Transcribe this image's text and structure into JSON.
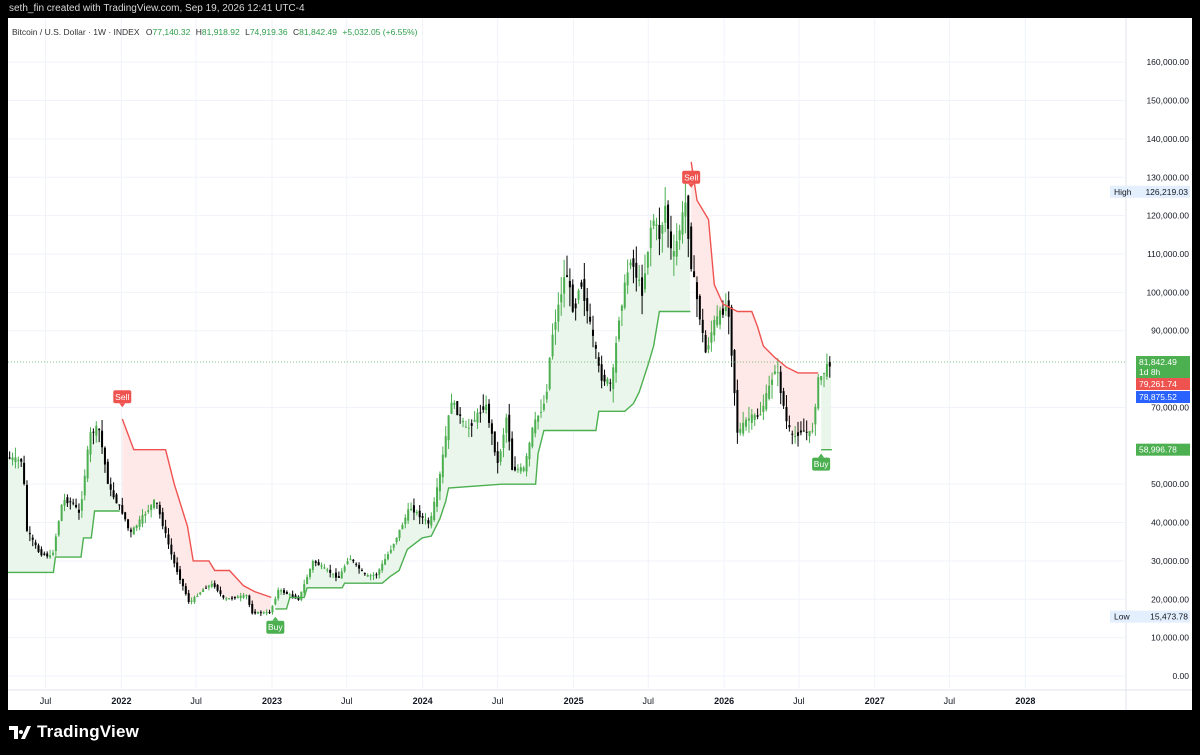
{
  "header": {
    "credit": "seth_fin created with TradingView.com, Sep 19, 2026 12:41 UTC-4"
  },
  "legend": {
    "symbol": "Bitcoin / U.S. Dollar · 1W · INDEX",
    "open_label": "O",
    "open": "77,140.32",
    "high_label": "H",
    "high": "81,918.92",
    "low_label": "L",
    "low": "74,919.36",
    "close_label": "C",
    "close": "81,842.49",
    "change": "+5,032.05 (+6.55%)"
  },
  "footer": {
    "brand": "TradingView"
  },
  "colors": {
    "up": "#4caf50",
    "down": "#000000",
    "supertrend_up": "#4caf50",
    "supertrend_down": "#ef5350",
    "fill_up": "#e8f5e9",
    "fill_down": "#ffe5e5",
    "blue_line": "#2962ff"
  },
  "chart_data": {
    "type": "candlestick",
    "title": "",
    "symbol": "Bitcoin / U.S. Dollar",
    "timeframe": "1W",
    "ylim": [
      0,
      165000
    ],
    "y_ticks": [
      "160,000.00",
      "150,000.00",
      "140,000.00",
      "130,000.00",
      "120,000.00",
      "110,000.00",
      "100,000.00",
      "90,000.00",
      "70,000.00",
      "50,000.00",
      "40,000.00",
      "30,000.00",
      "20,000.00",
      "10,000.00",
      "0.00"
    ],
    "y_tick_values": [
      160000,
      150000,
      140000,
      130000,
      120000,
      110000,
      100000,
      90000,
      70000,
      50000,
      40000,
      30000,
      20000,
      10000,
      0
    ],
    "xlim": [
      "2021-04-01",
      "2028-09-01"
    ],
    "x_ticks": [
      {
        "label": "Jul",
        "date": "2021-07-01",
        "bold": false
      },
      {
        "label": "2022",
        "date": "2022-01-01",
        "bold": true
      },
      {
        "label": "Jul",
        "date": "2022-07-01",
        "bold": false
      },
      {
        "label": "2023",
        "date": "2023-01-01",
        "bold": true
      },
      {
        "label": "Jul",
        "date": "2023-07-01",
        "bold": false
      },
      {
        "label": "2024",
        "date": "2024-01-01",
        "bold": true
      },
      {
        "label": "Jul",
        "date": "2024-07-01",
        "bold": false
      },
      {
        "label": "2025",
        "date": "2025-01-01",
        "bold": true
      },
      {
        "label": "Jul",
        "date": "2025-07-01",
        "bold": false
      },
      {
        "label": "2026",
        "date": "2026-01-01",
        "bold": true
      },
      {
        "label": "Jul",
        "date": "2026-07-01",
        "bold": false
      },
      {
        "label": "2027",
        "date": "2027-01-01",
        "bold": true
      },
      {
        "label": "Jul",
        "date": "2027-07-01",
        "bold": false
      },
      {
        "label": "2028",
        "date": "2028-01-01",
        "bold": true
      }
    ],
    "price_path": [
      [
        "2021-04-01",
        57000
      ],
      [
        "2021-05-10",
        56000
      ],
      [
        "2021-05-20",
        38000
      ],
      [
        "2021-06-20",
        32000
      ],
      [
        "2021-07-20",
        31000
      ],
      [
        "2021-08-15",
        46000
      ],
      [
        "2021-09-10",
        45000
      ],
      [
        "2021-09-25",
        42000
      ],
      [
        "2021-10-20",
        63000
      ],
      [
        "2021-11-10",
        65000
      ],
      [
        "2021-12-05",
        49000
      ],
      [
        "2022-01-10",
        42000
      ],
      [
        "2022-01-25",
        37000
      ],
      [
        "2022-03-28",
        46000
      ],
      [
        "2022-05-10",
        30000
      ],
      [
        "2022-06-18",
        19000
      ],
      [
        "2022-07-25",
        23000
      ],
      [
        "2022-08-15",
        24000
      ],
      [
        "2022-09-10",
        20000
      ],
      [
        "2022-11-05",
        21000
      ],
      [
        "2022-11-15",
        16500
      ],
      [
        "2022-12-30",
        16500
      ],
      [
        "2023-01-20",
        22500
      ],
      [
        "2023-03-10",
        20000
      ],
      [
        "2023-04-14",
        30000
      ],
      [
        "2023-06-15",
        25500
      ],
      [
        "2023-07-10",
        31000
      ],
      [
        "2023-08-20",
        26000
      ],
      [
        "2023-09-15",
        26500
      ],
      [
        "2023-10-24",
        34000
      ],
      [
        "2023-12-05",
        44000
      ],
      [
        "2024-01-22",
        39500
      ],
      [
        "2024-02-15",
        52000
      ],
      [
        "2024-03-14",
        72000
      ],
      [
        "2024-04-20",
        64000
      ],
      [
        "2024-06-05",
        71000
      ],
      [
        "2024-07-05",
        55000
      ],
      [
        "2024-07-28",
        69000
      ],
      [
        "2024-08-06",
        54000
      ],
      [
        "2024-09-07",
        54000
      ],
      [
        "2024-09-28",
        65000
      ],
      [
        "2024-10-29",
        72000
      ],
      [
        "2024-11-12",
        88000
      ],
      [
        "2024-12-17",
        106000
      ],
      [
        "2025-01-06",
        94000
      ],
      [
        "2025-01-20",
        104000
      ],
      [
        "2025-02-28",
        84000
      ],
      [
        "2025-03-10",
        78000
      ],
      [
        "2025-04-07",
        76000
      ],
      [
        "2025-04-25",
        94000
      ],
      [
        "2025-05-22",
        109000
      ],
      [
        "2025-06-20",
        100000
      ],
      [
        "2025-07-14",
        120000
      ],
      [
        "2025-08-02",
        114000
      ],
      [
        "2025-08-14",
        123000
      ],
      [
        "2025-09-01",
        108000
      ],
      [
        "2025-10-06",
        125000
      ],
      [
        "2025-10-11",
        111000
      ],
      [
        "2025-11-21",
        84000
      ],
      [
        "2025-12-10",
        92000
      ],
      [
        "2026-01-14",
        97000
      ],
      [
        "2026-02-06",
        63000
      ],
      [
        "2026-03-01",
        67000
      ],
      [
        "2026-04-01",
        68000
      ],
      [
        "2026-04-20",
        74000
      ],
      [
        "2026-05-10",
        81000
      ],
      [
        "2026-06-05",
        66000
      ],
      [
        "2026-06-20",
        62000
      ],
      [
        "2026-07-10",
        64000
      ],
      [
        "2026-08-05",
        63000
      ],
      [
        "2026-08-20",
        77000
      ],
      [
        "2026-09-19",
        81842
      ]
    ],
    "supertrend": [
      {
        "dir": "up",
        "points": [
          [
            "2021-04-01",
            27000
          ],
          [
            "2021-07-20",
            27000
          ],
          [
            "2021-07-25",
            31000
          ],
          [
            "2021-09-25",
            31000
          ],
          [
            "2021-10-01",
            36000
          ],
          [
            "2021-10-20",
            36000
          ],
          [
            "2021-10-28",
            43000
          ],
          [
            "2021-12-28",
            43000
          ]
        ]
      },
      {
        "dir": "down",
        "points": [
          [
            "2022-01-03",
            67000
          ],
          [
            "2022-01-31",
            59000
          ],
          [
            "2022-04-18",
            59000
          ],
          [
            "2022-05-09",
            50000
          ],
          [
            "2022-06-10",
            39000
          ],
          [
            "2022-06-24",
            30000
          ],
          [
            "2022-08-01",
            30000
          ],
          [
            "2022-08-15",
            27500
          ],
          [
            "2022-09-20",
            27500
          ],
          [
            "2022-10-24",
            23500
          ],
          [
            "2022-11-20",
            22000
          ],
          [
            "2022-12-30",
            20500
          ]
        ]
      },
      {
        "dir": "up",
        "points": [
          [
            "2023-01-09",
            17500
          ],
          [
            "2023-02-05",
            17500
          ],
          [
            "2023-02-13",
            20500
          ],
          [
            "2023-03-20",
            20500
          ],
          [
            "2023-03-27",
            23000
          ],
          [
            "2023-06-20",
            23000
          ],
          [
            "2023-06-26",
            24200
          ],
          [
            "2023-09-25",
            24200
          ],
          [
            "2023-10-15",
            26000
          ],
          [
            "2023-11-05",
            27500
          ],
          [
            "2023-11-25",
            33000
          ],
          [
            "2023-12-31",
            36000
          ],
          [
            "2024-01-22",
            36500
          ],
          [
            "2024-02-12",
            41000
          ],
          [
            "2024-02-26",
            45500
          ],
          [
            "2024-03-04",
            49000
          ],
          [
            "2024-07-10",
            50000
          ],
          [
            "2024-10-01",
            50000
          ],
          [
            "2024-10-07",
            58000
          ],
          [
            "2024-10-21",
            64000
          ],
          [
            "2025-02-24",
            64000
          ],
          [
            "2025-03-03",
            69000
          ],
          [
            "2025-05-05",
            69000
          ],
          [
            "2025-05-26",
            71000
          ],
          [
            "2025-06-09",
            74000
          ],
          [
            "2025-06-30",
            81000
          ],
          [
            "2025-07-14",
            86000
          ],
          [
            "2025-07-28",
            95000
          ],
          [
            "2025-10-11",
            95000
          ]
        ]
      },
      {
        "dir": "down",
        "points": [
          [
            "2025-10-13",
            134000
          ],
          [
            "2025-10-27",
            124000
          ],
          [
            "2025-11-24",
            119000
          ],
          [
            "2025-12-08",
            102000
          ],
          [
            "2025-12-29",
            97000
          ],
          [
            "2026-02-02",
            95000
          ],
          [
            "2026-03-09",
            95000
          ],
          [
            "2026-03-23",
            91000
          ],
          [
            "2026-04-06",
            86000
          ],
          [
            "2026-05-04",
            83000
          ],
          [
            "2026-06-01",
            80500
          ],
          [
            "2026-06-29",
            79000
          ],
          [
            "2026-08-17",
            79000
          ]
        ]
      },
      {
        "dir": "up",
        "points": [
          [
            "2026-08-24",
            59000
          ],
          [
            "2026-09-19",
            59000
          ]
        ]
      }
    ],
    "signals": [
      {
        "label": "Sell",
        "date": "2022-01-03",
        "price": 69000,
        "type": "sell"
      },
      {
        "label": "Buy",
        "date": "2023-01-09",
        "price": 16500,
        "type": "buy"
      },
      {
        "label": "Sell",
        "date": "2025-10-13",
        "price": 126219,
        "type": "sell"
      },
      {
        "label": "Buy",
        "date": "2026-08-24",
        "price": 59000,
        "type": "buy"
      }
    ],
    "last_price": {
      "value": 81842.49,
      "label": "81,842.49",
      "countdown": "1d 8h"
    },
    "price_labels": [
      {
        "label": "79,261.74",
        "value": 79261.74,
        "color": "#ef5350"
      },
      {
        "label": "78,875.52",
        "value": 78875.52,
        "color": "#2962ff"
      },
      {
        "label": "58,996.78",
        "value": 58996.78,
        "color": "#4caf50"
      }
    ],
    "extremes": {
      "high": {
        "tag": "High",
        "label": "126,219.03",
        "value": 126219.03
      },
      "low": {
        "tag": "Low",
        "label": "15,473.78",
        "value": 15473.78
      }
    }
  }
}
